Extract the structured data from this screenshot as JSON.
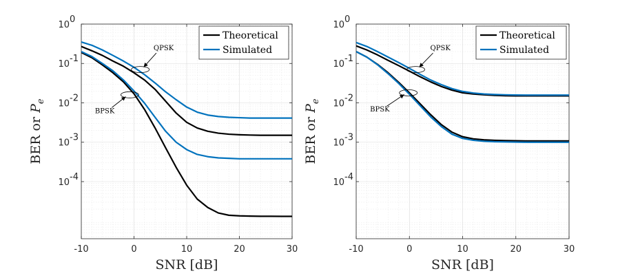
{
  "chart_data": [
    {
      "type": "line",
      "panel": "left",
      "xlabel": "SNR [dB]",
      "ylabel_prefix": "BER or ",
      "ylabel_symbol": "P",
      "ylabel_subscript": "e",
      "xlim": [
        -10,
        30
      ],
      "ylim_log10": [
        -5.45,
        0
      ],
      "yscale": "log",
      "xticks": [
        -10,
        0,
        10,
        20,
        30
      ],
      "xtick_labels": [
        "-10",
        "0",
        "10",
        "20",
        "30"
      ],
      "yticks_exp": [
        0,
        -1,
        -2,
        -3,
        -4
      ],
      "ytick_base": "10",
      "ytick_exp_labels": [
        "0",
        "-1",
        "-2",
        "-3",
        "-4"
      ],
      "grid": true,
      "legend_position": "top-right",
      "legend": [
        "Theoretical",
        "Simulated"
      ],
      "colors": {
        "Theoretical": "#000000",
        "Simulated": "#0072BD"
      },
      "x": [
        -10,
        -8,
        -6,
        -4,
        -2,
        0,
        2,
        4,
        6,
        8,
        10,
        12,
        14,
        16,
        18,
        20,
        22,
        24,
        26,
        28,
        30
      ],
      "series": [
        {
          "name": "Theoretical",
          "modulation": "QPSK",
          "values": [
            0.27,
            0.21,
            0.16,
            0.115,
            0.085,
            0.058,
            0.038,
            0.022,
            0.011,
            0.0055,
            0.0032,
            0.0023,
            0.0019,
            0.0017,
            0.0016,
            0.00155,
            0.00152,
            0.0015,
            0.0015,
            0.0015,
            0.0015
          ]
        },
        {
          "name": "Simulated",
          "modulation": "QPSK",
          "values": [
            0.35,
            0.29,
            0.22,
            0.16,
            0.115,
            0.08,
            0.052,
            0.032,
            0.019,
            0.012,
            0.0078,
            0.0058,
            0.0049,
            0.0045,
            0.0043,
            0.0042,
            0.0041,
            0.0041,
            0.0041,
            0.0041,
            0.0041
          ]
        },
        {
          "name": "Theoretical",
          "modulation": "BPSK",
          "values": [
            0.19,
            0.14,
            0.092,
            0.058,
            0.034,
            0.017,
            0.0068,
            0.0023,
            0.00072,
            0.00023,
            8.1e-05,
            3.6e-05,
            2.2e-05,
            1.6e-05,
            1.4e-05,
            1.35e-05,
            1.33e-05,
            1.32e-05,
            1.32e-05,
            1.31e-05,
            1.31e-05
          ]
        },
        {
          "name": "Simulated",
          "modulation": "BPSK",
          "values": [
            0.2,
            0.15,
            0.1,
            0.065,
            0.038,
            0.02,
            0.0098,
            0.0043,
            0.0019,
            0.001,
            0.00065,
            0.00049,
            0.00043,
            0.0004,
            0.00039,
            0.00038,
            0.00038,
            0.00038,
            0.00038,
            0.00038,
            0.00038
          ]
        }
      ],
      "annotations": [
        {
          "text": "QPSK",
          "x": 1.2,
          "y": 0.07,
          "text_x": 4.5,
          "text_y": 0.2
        },
        {
          "text": "BPSK",
          "x": -0.8,
          "y": 0.016,
          "text_x": -6.3,
          "text_y": 0.0055
        }
      ]
    },
    {
      "type": "line",
      "panel": "right",
      "xlabel": "SNR [dB]",
      "ylabel_prefix": "BER or ",
      "ylabel_symbol": "P",
      "ylabel_subscript": "e",
      "xlim": [
        -10,
        30
      ],
      "ylim_log10": [
        -5.45,
        0
      ],
      "yscale": "log",
      "xticks": [
        -10,
        0,
        10,
        20,
        30
      ],
      "xtick_labels": [
        "-10",
        "0",
        "10",
        "20",
        "30"
      ],
      "yticks_exp": [
        0,
        -1,
        -2,
        -3,
        -4
      ],
      "ytick_base": "10",
      "ytick_exp_labels": [
        "0",
        "-1",
        "-2",
        "-3",
        "-4"
      ],
      "grid": true,
      "legend_position": "top-right",
      "legend": [
        "Theoretical",
        "Simulated"
      ],
      "colors": {
        "Theoretical": "#000000",
        "Simulated": "#0072BD"
      },
      "x": [
        -10,
        -8,
        -6,
        -4,
        -2,
        0,
        2,
        4,
        6,
        8,
        10,
        12,
        14,
        16,
        18,
        20,
        22,
        24,
        26,
        28,
        30
      ],
      "series": [
        {
          "name": "Theoretical",
          "modulation": "QPSK",
          "values": [
            0.28,
            0.22,
            0.165,
            0.12,
            0.088,
            0.064,
            0.046,
            0.034,
            0.026,
            0.021,
            0.018,
            0.0168,
            0.016,
            0.0155,
            0.0152,
            0.015,
            0.015,
            0.015,
            0.015,
            0.015,
            0.015
          ]
        },
        {
          "name": "Simulated",
          "modulation": "QPSK",
          "values": [
            0.34,
            0.27,
            0.2,
            0.145,
            0.105,
            0.075,
            0.053,
            0.038,
            0.029,
            0.023,
            0.0195,
            0.0178,
            0.0168,
            0.0163,
            0.016,
            0.0158,
            0.0157,
            0.0157,
            0.0157,
            0.0157,
            0.0157
          ]
        },
        {
          "name": "Theoretical",
          "modulation": "BPSK",
          "values": [
            0.2,
            0.145,
            0.095,
            0.058,
            0.033,
            0.018,
            0.0095,
            0.005,
            0.0028,
            0.0018,
            0.00138,
            0.00122,
            0.00115,
            0.00112,
            0.0011,
            0.00109,
            0.00108,
            0.00108,
            0.00108,
            0.00108,
            0.00108
          ]
        },
        {
          "name": "Simulated",
          "modulation": "BPSK",
          "values": [
            0.2,
            0.145,
            0.093,
            0.055,
            0.031,
            0.0165,
            0.0085,
            0.0044,
            0.0025,
            0.0016,
            0.00125,
            0.00112,
            0.00106,
            0.00103,
            0.00102,
            0.00101,
            0.001,
            0.001,
            0.001,
            0.001,
            0.001
          ]
        }
      ],
      "annotations": [
        {
          "text": "QPSK",
          "x": 1.2,
          "y": 0.07,
          "text_x": 4.7,
          "text_y": 0.2
        },
        {
          "text": "BPSK",
          "x": -0.2,
          "y": 0.018,
          "text_x": -6.3,
          "text_y": 0.006
        }
      ]
    }
  ]
}
